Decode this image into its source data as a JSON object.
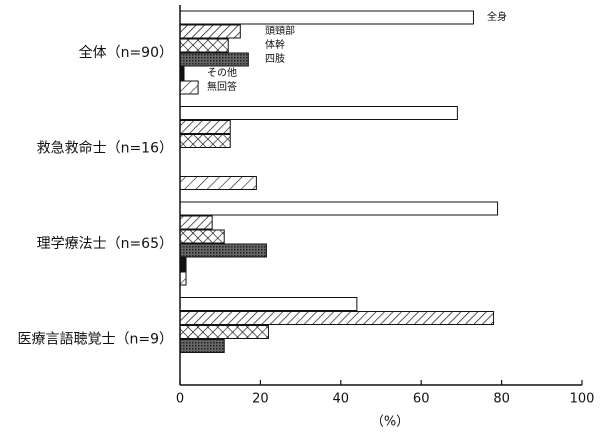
{
  "chart_data": {
    "type": "hbar",
    "categories": [
      "全体（n=90）",
      "救急救命士（n=16）",
      "理学療法士（n=65）",
      "医療言語聴覚士（n=9）"
    ],
    "series": [
      {
        "name": "全身",
        "pattern": "white",
        "values": [
          73,
          69,
          79,
          44
        ]
      },
      {
        "name": "頭頸部",
        "pattern": "diagonal",
        "values": [
          15,
          12.5,
          8,
          78
        ]
      },
      {
        "name": "体幹",
        "pattern": "cross",
        "values": [
          12,
          12.5,
          11,
          22
        ]
      },
      {
        "name": "四肢",
        "pattern": "dots",
        "values": [
          17,
          0,
          21.5,
          11
        ]
      },
      {
        "name": "その他",
        "pattern": "black",
        "values": [
          1,
          0,
          1.5,
          0
        ]
      },
      {
        "name": "無回答",
        "pattern": "sparse",
        "values": [
          4.5,
          19,
          1.5,
          0
        ]
      }
    ],
    "xlim": [
      0,
      100
    ],
    "xticks": [
      0,
      20,
      40,
      60,
      80,
      100
    ],
    "xlabel": "（%）"
  }
}
